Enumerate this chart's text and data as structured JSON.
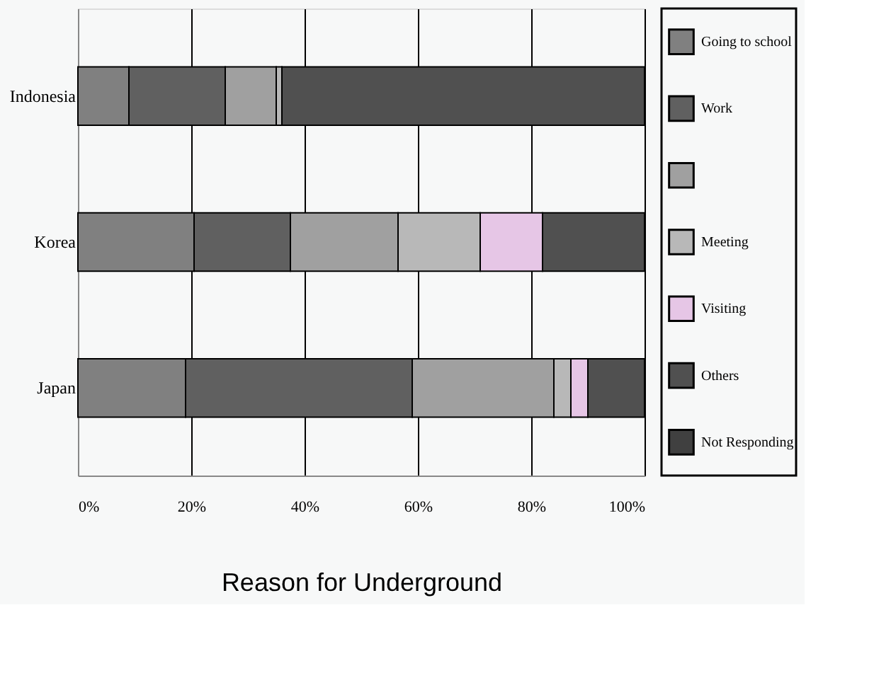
{
  "chart_data": {
    "type": "bar",
    "orientation": "horizontal",
    "stacked": true,
    "xlabel": "Reason for Underground",
    "categories": [
      "Indonesia",
      "Korea",
      "Japan"
    ],
    "series": [
      {
        "name": "Going to school",
        "color": "#808080",
        "values": [
          9,
          20.5,
          19
        ]
      },
      {
        "name": "Work",
        "color": "#606060",
        "values": [
          17,
          17,
          40
        ]
      },
      {
        "color": "#a0a0a0",
        "values": [
          9,
          19,
          25
        ]
      },
      {
        "name": "Meeting",
        "color": "#b8b8b8",
        "values": [
          1,
          14.5,
          3
        ]
      },
      {
        "name": "Visiting",
        "color": "#e6c6e6",
        "values": [
          0,
          11,
          3
        ]
      },
      {
        "name": "Others",
        "color": "#505050",
        "values": [
          64,
          18,
          10
        ]
      },
      {
        "name": "Not Responding",
        "color": "#404040",
        "values": [
          0,
          0,
          0
        ]
      }
    ],
    "xlim": [
      0,
      100
    ],
    "xticks": [
      {
        "value": 0,
        "label": "0%"
      },
      {
        "value": 20,
        "label": "20%"
      },
      {
        "value": 40,
        "label": "40%"
      },
      {
        "value": 60,
        "label": "60%"
      },
      {
        "value": 80,
        "label": "80%"
      },
      {
        "value": 100,
        "label": "100%"
      }
    ],
    "grid": "x",
    "legend": "right"
  }
}
